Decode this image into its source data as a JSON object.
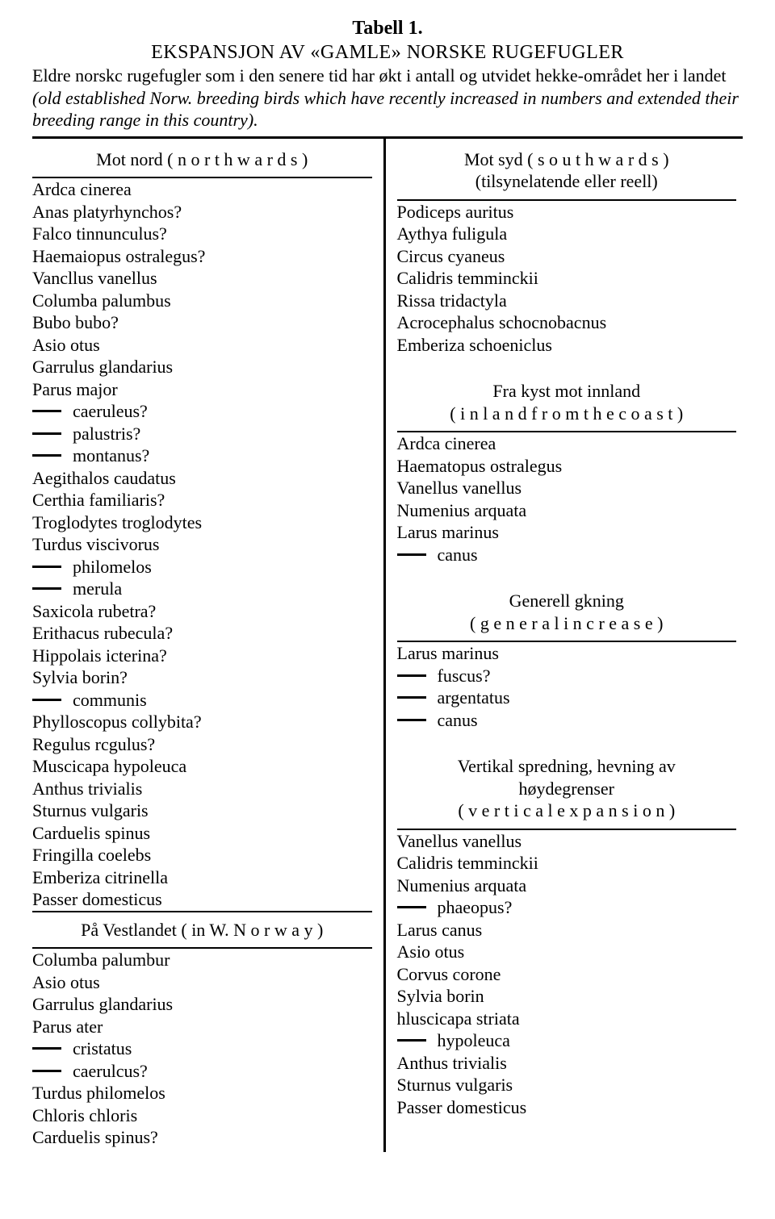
{
  "tableLabel": "Tabell 1.",
  "title": "EKSPANSJON AV «GAMLE» NORSKE RUGEFUGLER",
  "intro_a": "Eldre norskc rugefugler som i den senere tid har økt i antall og utvidet hekke-området her i landet ",
  "intro_b": "(old established Norw. breeding birds which have recently increased in numbers and extended their breeding range in this country).",
  "left": {
    "h1a": "Mot nord  ( n o r t h w a r d s )",
    "list1": [
      "Ardca cinerea",
      "Anas platyrhynchos?",
      "Falco tinnunculus?",
      "Haemaiopus ostralegus?",
      "Vancllus vanellus",
      "Columba palumbus",
      "Bubo bubo?",
      "Asio otus",
      "Garrulus glandarius",
      "Parus major"
    ],
    "sub1": [
      "caeruleus?",
      "palustris?",
      "montanus?"
    ],
    "list1b": [
      "Aegithalos caudatus",
      "Certhia familiaris?",
      "Troglodytes troglodytes",
      "Turdus viscivorus"
    ],
    "sub1b": [
      "philomelos",
      "merula"
    ],
    "list1c": [
      "Saxicola rubetra?",
      "Erithacus rubecula?",
      "Hippolais icterina?",
      "Sylvia borin?"
    ],
    "sub1c": [
      "communis"
    ],
    "list1d": [
      "Phylloscopus collybita?",
      "Regulus rcgulus?",
      "Muscicapa hypoleuca",
      "Anthus trivialis",
      "Sturnus vulgaris",
      "Carduelis spinus",
      "Fringilla coelebs",
      "Emberiza citrinella",
      "Passer domesticus"
    ],
    "h2": "På Vestlandet  ( in   W.   N o r w a y )",
    "list2": [
      "Columba palumbur",
      "Asio otus",
      "Garrulus glandarius",
      "Parus ater"
    ],
    "sub2": [
      "cristatus",
      "caerulcus?"
    ],
    "list2b": [
      "Turdus philomelos",
      "Chloris chloris",
      "Carduelis spinus?"
    ]
  },
  "right": {
    "h1a": "Mot syd  ( s o u t h w a r d s )",
    "h1b": "(tilsynelatende eller reell)",
    "list1": [
      "Podiceps auritus",
      "Aythya fuligula",
      "Circus cyaneus",
      "Calidris temminckii",
      "Rissa tridactyla",
      "Acrocephalus schocnobacnus",
      "Emberiza schoeniclus"
    ],
    "h2a": "Fra kyst mot innland",
    "h2b": "( i n l a n d   f r o m   t h e   c o a s t )",
    "list2": [
      "Ardca cinerea",
      "Haematopus ostralegus",
      "Vanellus vanellus",
      "Numenius arquata",
      "Larus marinus"
    ],
    "sub2": [
      "canus"
    ],
    "h3a": "Generell gkning",
    "h3b": "( g e n e r a l   i n c r e a s e )",
    "list3": [
      "Larus marinus"
    ],
    "sub3": [
      "fuscus?",
      "argentatus",
      "canus"
    ],
    "h4a": "Vertikal spredning, hevning av",
    "h4b": "høydegrenser",
    "h4c": "( v e r t i c a l   e x p a n s i o n )",
    "list4": [
      "Vanellus vanellus",
      "Calidris temminckii",
      "Numenius arquata"
    ],
    "sub4": [
      "phaeopus?"
    ],
    "list4b": [
      "Larus canus",
      "Asio otus",
      "Corvus corone",
      "Sylvia borin",
      "hluscicapa striata"
    ],
    "sub4b": [
      "hypoleuca"
    ],
    "list4c": [
      "Anthus trivialis",
      "Sturnus vulgaris",
      "Passer domesticus"
    ]
  }
}
